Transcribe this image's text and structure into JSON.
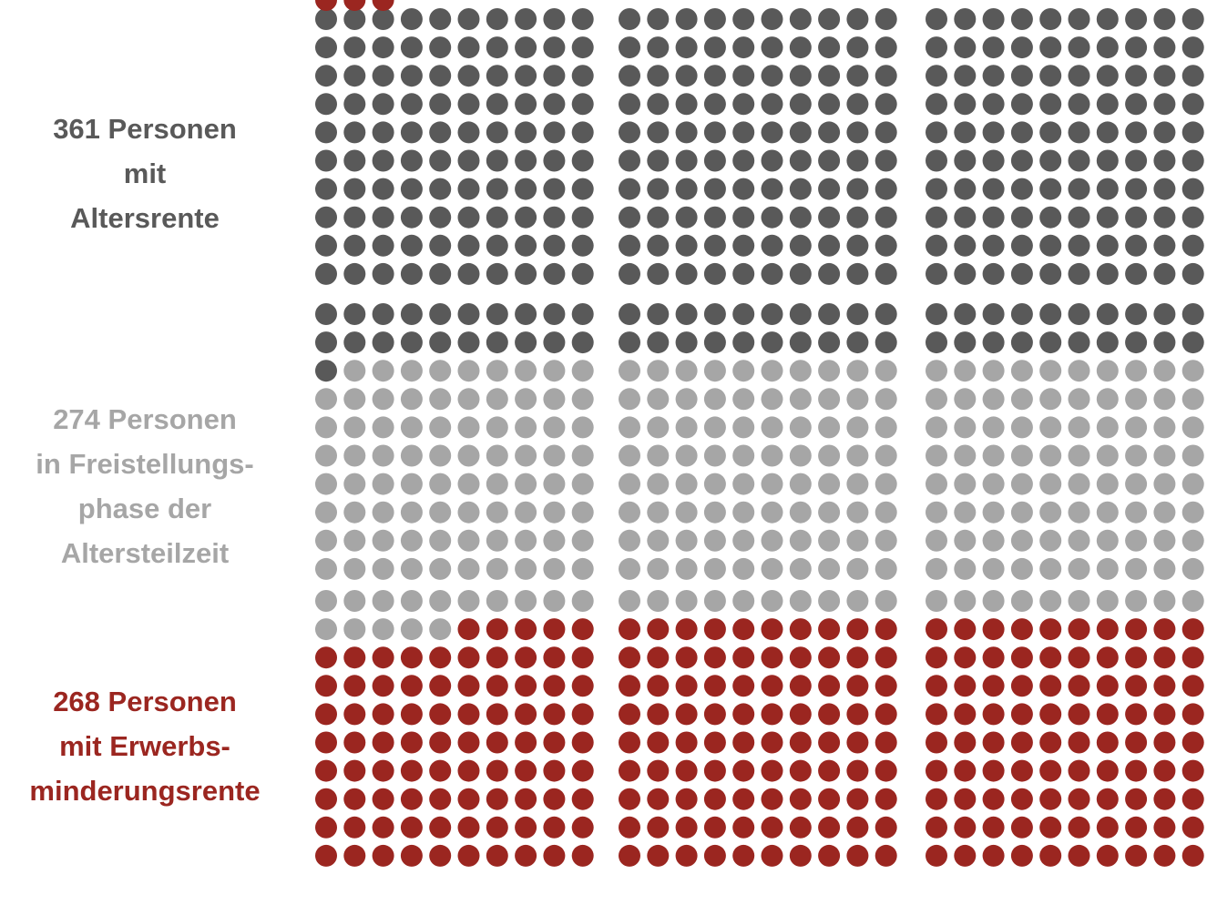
{
  "chart_data": {
    "type": "waffle",
    "title": "",
    "unit_per_dot": 1,
    "total": 903,
    "series": [
      {
        "key": "altersrente",
        "value": 361,
        "label_lines": [
          "361 Personen",
          "mit",
          "Altersrente"
        ],
        "color": "#595959"
      },
      {
        "key": "altersteilzeit",
        "value": 274,
        "label_lines": [
          "274 Personen",
          "in Freistellungs-",
          "phase der",
          "Altersteilzeit"
        ],
        "color": "#a6a6a6"
      },
      {
        "key": "erwerbsminderungsrente",
        "value": 268,
        "label_lines": [
          "268 Personen",
          "mit Erwerbs-",
          "minderungsrente"
        ],
        "color": "#9b2620"
      }
    ],
    "layout": {
      "blocks_per_row": 3,
      "block_columns": 10,
      "block_rows": 10,
      "fill_order": "row-wise across blocks"
    }
  }
}
